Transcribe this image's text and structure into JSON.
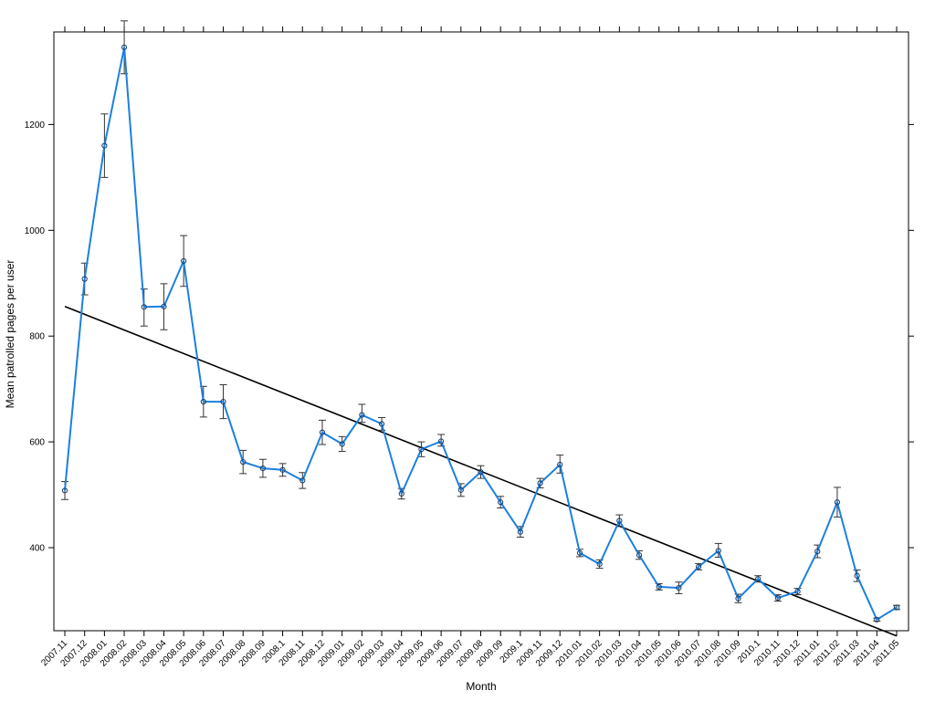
{
  "chart_data": {
    "type": "line",
    "xlabel": "Month",
    "ylabel": "Mean patrolled pages per user",
    "ylim": [
      243,
      1375
    ],
    "yticks": [
      400,
      600,
      800,
      1000,
      1200
    ],
    "grid": false,
    "categories": [
      "2007.11",
      "2007.12",
      "2008.01",
      "2008.02",
      "2008.03",
      "2008.04",
      "2008.05",
      "2008.06",
      "2008.07",
      "2008.08",
      "2008.09",
      "2008.1",
      "2008.11",
      "2008.12",
      "2009.01",
      "2009.02",
      "2009.03",
      "2009.04",
      "2009.05",
      "2009.06",
      "2009.07",
      "2009.08",
      "2009.09",
      "2009.1",
      "2009.11",
      "2009.12",
      "2010.01",
      "2010.02",
      "2010.03",
      "2010.04",
      "2010.05",
      "2010.06",
      "2010.07",
      "2010.08",
      "2010.09",
      "2010.1",
      "2010.11",
      "2010.12",
      "2011.01",
      "2011.02",
      "2011.03",
      "2011.04",
      "2011.05"
    ],
    "series": [
      {
        "values": [
          508,
          908,
          1160,
          1346,
          855,
          856,
          942,
          676,
          676,
          562,
          550,
          547,
          527,
          618,
          596,
          651,
          634,
          502,
          586,
          601,
          509,
          543,
          486,
          430,
          522,
          557,
          390,
          369,
          451,
          386,
          326,
          324,
          364,
          394,
          304,
          341,
          305,
          317,
          393,
          486,
          347,
          264,
          287
        ],
        "error_low": [
          491,
          878,
          1100,
          1296,
          819,
          812,
          894,
          647,
          644,
          540,
          533,
          535,
          512,
          595,
          582,
          637,
          622,
          492,
          572,
          592,
          497,
          531,
          475,
          420,
          513,
          541,
          383,
          361,
          440,
          378,
          320,
          313,
          358,
          382,
          296,
          335,
          299,
          311,
          381,
          458,
          336,
          261,
          283
        ],
        "error_high": [
          525,
          938,
          1220,
          1396,
          889,
          899,
          990,
          705,
          708,
          584,
          567,
          559,
          542,
          641,
          610,
          671,
          646,
          512,
          600,
          614,
          521,
          555,
          497,
          440,
          531,
          575,
          397,
          377,
          462,
          394,
          332,
          335,
          370,
          408,
          312,
          347,
          311,
          323,
          405,
          514,
          358,
          267,
          291
        ]
      }
    ],
    "trendline": {
      "start": 856,
      "end": 233
    },
    "colors": {
      "line": "#1b80e0",
      "trend": "#000000",
      "error": "#333333",
      "frame": "#000000"
    }
  }
}
